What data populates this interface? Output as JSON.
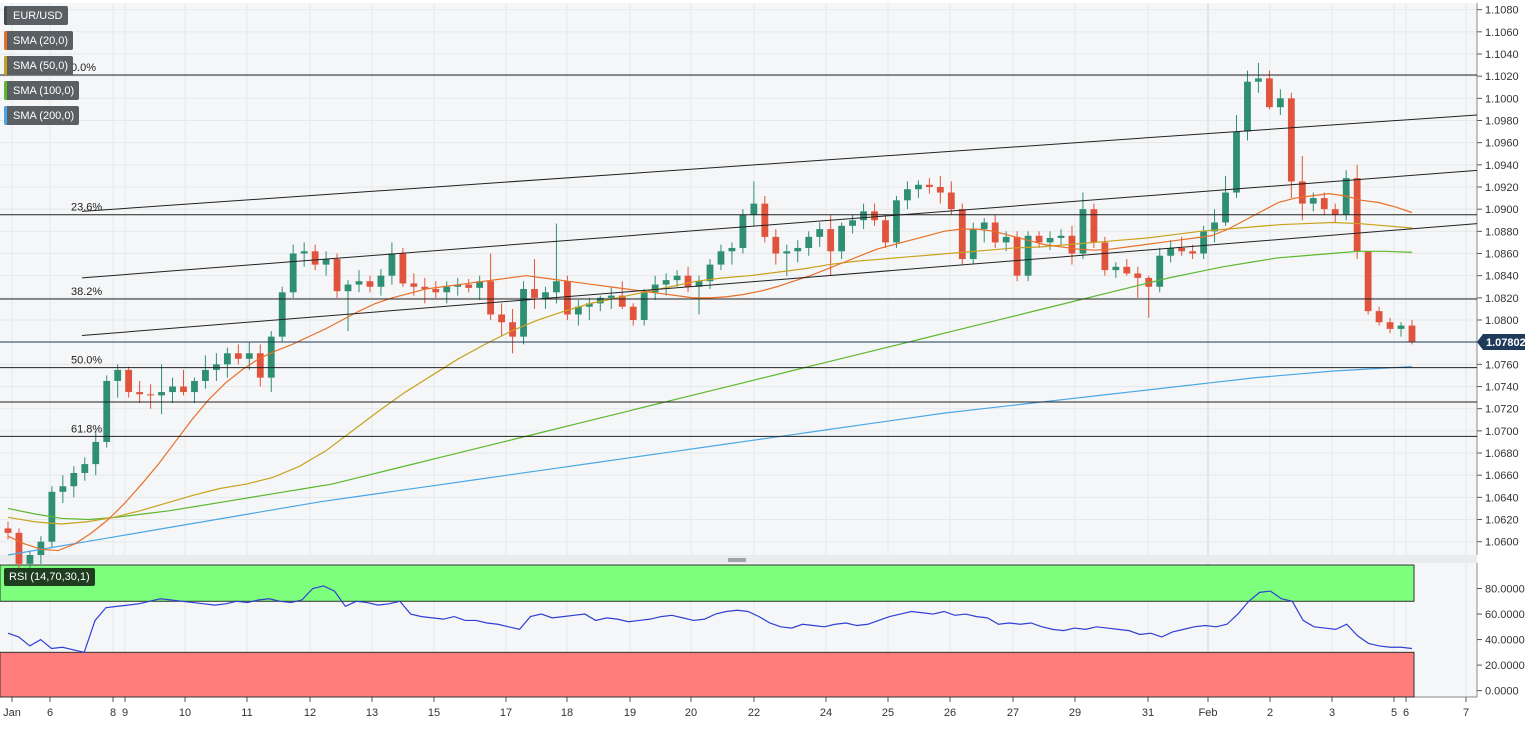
{
  "legend": [
    {
      "label": "EUR/USD",
      "color": "#5a5f63"
    },
    {
      "label": "SMA (20,0)",
      "color": "#e8702a"
    },
    {
      "label": "SMA (50,0)",
      "color": "#c8a21e"
    },
    {
      "label": "SMA (100,0)",
      "color": "#5cb82e"
    },
    {
      "label": "SMA (200,0)",
      "color": "#4aa7e6"
    }
  ],
  "rsi_label": "RSI (14,70,30,1)",
  "price_tag": "1.07802",
  "colors": {
    "bull": "#2f8f72",
    "bear": "#e0533c",
    "sma20": "#e8702a",
    "sma50": "#c8a21e",
    "sma100": "#5cb82e",
    "sma200": "#4aa7e6",
    "rsi": "#2f3fd6",
    "overbought": "#7dff7d",
    "oversold": "#ff7d7d"
  },
  "chart_data": {
    "type": "candlestick",
    "x_ticks": [
      "Jan",
      "6",
      "8",
      "9",
      "10",
      "11",
      "12",
      "13",
      "15",
      "17",
      "18",
      "19",
      "20",
      "22",
      "24",
      "25",
      "26",
      "27",
      "29",
      "31",
      "Feb",
      "2",
      "3",
      "5",
      "6",
      "7"
    ],
    "y_ticks": [
      "1.1080",
      "1.1060",
      "1.1040",
      "1.1020",
      "1.1000",
      "1.0980",
      "1.0960",
      "1.0940",
      "1.0920",
      "1.0900",
      "1.0880",
      "1.0860",
      "1.0840",
      "1.0820",
      "1.0800",
      "1.0780",
      "1.0760",
      "1.0740",
      "1.0720",
      "1.0700",
      "1.0680",
      "1.0660",
      "1.0640",
      "1.0620",
      "1.0600"
    ],
    "ylim": [
      1.0588,
      1.1086
    ],
    "fib_levels": [
      {
        "label": "0.0%",
        "value": 1.1021
      },
      {
        "label": "23.6%",
        "value": 1.0895
      },
      {
        "label": "38.2%",
        "value": 1.0819
      },
      {
        "label": "50.0%",
        "value": 1.0757
      },
      {
        "label": "",
        "value": 1.0726
      },
      {
        "label": "61.8%",
        "value": 1.0695
      }
    ],
    "current_price": 1.07802,
    "channel_lines": [
      {
        "from": [
          0,
          1.0898
        ],
        "to": [
          1,
          1.0985
        ]
      },
      {
        "from": [
          0,
          1.0838
        ],
        "to": [
          1,
          1.0935
        ]
      },
      {
        "from": [
          0,
          1.0786
        ],
        "to": [
          1,
          1.0887
        ]
      }
    ],
    "candles": [
      [
        1.0612,
        1.0618,
        1.0602,
        1.0608
      ],
      [
        1.0608,
        1.0612,
        1.0575,
        1.058
      ],
      [
        1.058,
        1.0592,
        1.057,
        1.0588
      ],
      [
        1.0588,
        1.0605,
        1.058,
        1.06
      ],
      [
        1.06,
        1.065,
        1.0595,
        1.0645
      ],
      [
        1.0645,
        1.066,
        1.0635,
        1.065
      ],
      [
        1.065,
        1.0668,
        1.064,
        1.0662
      ],
      [
        1.0662,
        1.0676,
        1.0655,
        1.067
      ],
      [
        1.067,
        1.07,
        1.066,
        1.069
      ],
      [
        1.069,
        1.075,
        1.0685,
        1.0745
      ],
      [
        1.0745,
        1.076,
        1.073,
        1.0755
      ],
      [
        1.0755,
        1.0758,
        1.073,
        1.0735
      ],
      [
        1.0735,
        1.0745,
        1.0725,
        1.0733
      ],
      [
        1.0733,
        1.0742,
        1.072,
        1.0732
      ],
      [
        1.0732,
        1.076,
        1.0715,
        1.0735
      ],
      [
        1.0735,
        1.0748,
        1.0725,
        1.074
      ],
      [
        1.074,
        1.0755,
        1.0732,
        1.0735
      ],
      [
        1.0735,
        1.0748,
        1.0725,
        1.0745
      ],
      [
        1.0745,
        1.0768,
        1.0738,
        1.0755
      ],
      [
        1.0755,
        1.077,
        1.0745,
        1.076
      ],
      [
        1.076,
        1.0775,
        1.0748,
        1.077
      ],
      [
        1.077,
        1.0778,
        1.076,
        1.0765
      ],
      [
        1.0765,
        1.078,
        1.0755,
        1.077
      ],
      [
        1.077,
        1.0778,
        1.074,
        1.0748
      ],
      [
        1.0748,
        1.079,
        1.0735,
        1.0785
      ],
      [
        1.0785,
        1.083,
        1.078,
        1.0825
      ],
      [
        1.0825,
        1.0868,
        1.082,
        1.086
      ],
      [
        1.086,
        1.087,
        1.0848,
        1.0862
      ],
      [
        1.0862,
        1.0868,
        1.0845,
        1.085
      ],
      [
        1.085,
        1.0862,
        1.084,
        1.0855
      ],
      [
        1.0855,
        1.086,
        1.082,
        1.0826
      ],
      [
        1.0826,
        1.0836,
        1.079,
        1.0832
      ],
      [
        1.0832,
        1.0845,
        1.0825,
        1.0835
      ],
      [
        1.0835,
        1.084,
        1.0825,
        1.083
      ],
      [
        1.083,
        1.0846,
        1.0822,
        1.084
      ],
      [
        1.084,
        1.087,
        1.0832,
        1.086
      ],
      [
        1.086,
        1.0865,
        1.083,
        1.0833
      ],
      [
        1.0833,
        1.0842,
        1.0822,
        1.083
      ],
      [
        1.083,
        1.0838,
        1.0815,
        1.0828
      ],
      [
        1.0828,
        1.0835,
        1.082,
        1.0825
      ],
      [
        1.0825,
        1.0835,
        1.0815,
        1.083
      ],
      [
        1.083,
        1.0838,
        1.0822,
        1.0832
      ],
      [
        1.0832,
        1.0837,
        1.0825,
        1.0829
      ],
      [
        1.0829,
        1.084,
        1.0818,
        1.0835
      ],
      [
        1.0835,
        1.086,
        1.08,
        1.0805
      ],
      [
        1.0805,
        1.0815,
        1.0785,
        1.0798
      ],
      [
        1.0798,
        1.081,
        1.077,
        1.0785
      ],
      [
        1.0785,
        1.0835,
        1.0778,
        1.0828
      ],
      [
        1.0828,
        1.0855,
        1.081,
        1.082
      ],
      [
        1.082,
        1.083,
        1.081,
        1.0825
      ],
      [
        1.0825,
        1.0887,
        1.0815,
        1.0835
      ],
      [
        1.0835,
        1.084,
        1.08,
        1.0805
      ],
      [
        1.0805,
        1.0818,
        1.0795,
        1.0812
      ],
      [
        1.0812,
        1.082,
        1.08,
        1.0815
      ],
      [
        1.0815,
        1.0822,
        1.0808,
        1.082
      ],
      [
        1.082,
        1.083,
        1.081,
        1.0822
      ],
      [
        1.0822,
        1.0835,
        1.081,
        1.0812
      ],
      [
        1.0812,
        1.0815,
        1.0795,
        1.08
      ],
      [
        1.08,
        1.0828,
        1.0795,
        1.0825
      ],
      [
        1.0825,
        1.084,
        1.0818,
        1.0832
      ],
      [
        1.0832,
        1.0842,
        1.0822,
        1.0836
      ],
      [
        1.0836,
        1.0845,
        1.083,
        1.084
      ],
      [
        1.084,
        1.0848,
        1.0825,
        1.083
      ],
      [
        1.083,
        1.084,
        1.0805,
        1.0835
      ],
      [
        1.0835,
        1.0855,
        1.0828,
        1.085
      ],
      [
        1.085,
        1.0868,
        1.0845,
        1.0862
      ],
      [
        1.0862,
        1.087,
        1.085,
        1.0865
      ],
      [
        1.0865,
        1.09,
        1.086,
        1.0895
      ],
      [
        1.0895,
        1.0925,
        1.0885,
        1.0905
      ],
      [
        1.0905,
        1.0912,
        1.087,
        1.0875
      ],
      [
        1.0875,
        1.0882,
        1.085,
        1.086
      ],
      [
        1.086,
        1.0868,
        1.084,
        1.0862
      ],
      [
        1.0862,
        1.0872,
        1.0852,
        1.0865
      ],
      [
        1.0865,
        1.088,
        1.0858,
        1.0875
      ],
      [
        1.0875,
        1.0888,
        1.0866,
        1.0882
      ],
      [
        1.0882,
        1.0895,
        1.084,
        1.0862
      ],
      [
        1.0862,
        1.0888,
        1.0855,
        1.0885
      ],
      [
        1.0885,
        1.0895,
        1.0878,
        1.089
      ],
      [
        1.089,
        1.0905,
        1.0882,
        1.0898
      ],
      [
        1.0898,
        1.0905,
        1.0885,
        1.089
      ],
      [
        1.089,
        1.0895,
        1.0865,
        1.087
      ],
      [
        1.087,
        1.0912,
        1.0865,
        1.0908
      ],
      [
        1.0908,
        1.0925,
        1.09,
        1.0918
      ],
      [
        1.0918,
        1.0926,
        1.091,
        1.0922
      ],
      [
        1.0922,
        1.0928,
        1.0914,
        1.092
      ],
      [
        1.092,
        1.093,
        1.0905,
        1.0915
      ],
      [
        1.0915,
        1.0925,
        1.0895,
        1.09
      ],
      [
        1.09,
        1.0905,
        1.085,
        1.0855
      ],
      [
        1.0855,
        1.0888,
        1.085,
        1.0882
      ],
      [
        1.0882,
        1.0892,
        1.087,
        1.0888
      ],
      [
        1.0888,
        1.0895,
        1.0865,
        1.087
      ],
      [
        1.087,
        1.088,
        1.0862,
        1.0875
      ],
      [
        1.0875,
        1.088,
        1.0835,
        1.084
      ],
      [
        1.084,
        1.088,
        1.0835,
        1.0876
      ],
      [
        1.0876,
        1.088,
        1.0865,
        1.087
      ],
      [
        1.087,
        1.088,
        1.0863,
        1.0874
      ],
      [
        1.0874,
        1.0882,
        1.0868,
        1.0876
      ],
      [
        1.0876,
        1.0885,
        1.085,
        1.086
      ],
      [
        1.086,
        1.0915,
        1.0855,
        1.09
      ],
      [
        1.09,
        1.0905,
        1.0865,
        1.087
      ],
      [
        1.087,
        1.0875,
        1.084,
        1.0845
      ],
      [
        1.0845,
        1.0852,
        1.0838,
        1.0848
      ],
      [
        1.0848,
        1.0855,
        1.084,
        1.0842
      ],
      [
        1.0842,
        1.0848,
        1.082,
        1.0838
      ],
      [
        1.0838,
        1.084,
        1.0802,
        1.083
      ],
      [
        1.083,
        1.0865,
        1.0825,
        1.0858
      ],
      [
        1.0858,
        1.0872,
        1.0852,
        1.0865
      ],
      [
        1.0865,
        1.0875,
        1.0858,
        1.0862
      ],
      [
        1.0862,
        1.0868,
        1.0855,
        1.086
      ],
      [
        1.086,
        1.0885,
        1.0855,
        1.088
      ],
      [
        1.088,
        1.09,
        1.087,
        1.0888
      ],
      [
        1.0888,
        1.093,
        1.0885,
        1.0915
      ],
      [
        1.0915,
        1.0985,
        1.091,
        1.097
      ],
      [
        1.097,
        1.1025,
        1.0962,
        1.1015
      ],
      [
        1.1015,
        1.1032,
        1.1005,
        1.1018
      ],
      [
        1.1018,
        1.1025,
        1.099,
        1.0992
      ],
      [
        1.0992,
        1.1008,
        1.0985,
        1.1
      ],
      [
        1.1,
        1.1005,
        1.091,
        1.0925
      ],
      [
        1.0925,
        1.0948,
        1.089,
        1.0905
      ],
      [
        1.0905,
        1.0915,
        1.0898,
        1.091
      ],
      [
        1.091,
        1.0915,
        1.0895,
        1.09
      ],
      [
        1.09,
        1.0905,
        1.0888,
        1.0895
      ],
      [
        1.0895,
        1.0935,
        1.089,
        1.0928
      ],
      [
        1.0928,
        1.094,
        1.0855,
        1.0862
      ],
      [
        1.0862,
        1.0862,
        1.0805,
        1.0808
      ],
      [
        1.0808,
        1.0812,
        1.0795,
        1.0798
      ],
      [
        1.0798,
        1.0802,
        1.0788,
        1.0792
      ],
      [
        1.0792,
        1.0798,
        1.0785,
        1.0795
      ],
      [
        1.0795,
        1.08,
        1.0778,
        1.078
      ]
    ],
    "sma20": [
      1.0605,
      1.0598,
      1.0593,
      1.0592,
      1.0598,
      1.0608,
      1.062,
      1.0635,
      1.0652,
      1.067,
      1.069,
      1.071,
      1.0728,
      1.0743,
      1.0755,
      1.0765,
      1.0772,
      1.0778,
      1.0785,
      1.0792,
      1.08,
      1.0808,
      1.0815,
      1.082,
      1.0824,
      1.0828,
      1.083,
      1.0832,
      1.0834,
      1.0836,
      1.0838,
      1.084,
      1.0838,
      1.0836,
      1.0834,
      1.0832,
      1.083,
      1.0828,
      1.0826,
      1.0824,
      1.0822,
      1.082,
      1.082,
      1.0821,
      1.0823,
      1.0826,
      1.083,
      1.0835,
      1.084,
      1.0846,
      1.0852,
      1.0858,
      1.0864,
      1.0868,
      1.0872,
      1.0876,
      1.088,
      1.0882,
      1.0882,
      1.088,
      1.0876,
      1.0872,
      1.0868,
      1.0866,
      1.0864,
      1.0863,
      1.0864,
      1.0866,
      1.0868,
      1.087,
      1.0872,
      1.0874,
      1.0876,
      1.0882,
      1.089,
      1.0898,
      1.0906,
      1.091,
      1.0912,
      1.0914,
      1.0912,
      1.0908,
      1.0906,
      1.0902,
      1.0897
    ],
    "sma50": [
      1.0622,
      1.0618,
      1.0616,
      1.0618,
      1.0622,
      1.0628,
      1.0635,
      1.0642,
      1.0648,
      1.0652,
      1.0658,
      1.0668,
      1.0682,
      1.07,
      1.0718,
      1.0735,
      1.075,
      1.0765,
      1.0778,
      1.079,
      1.08,
      1.0808,
      1.0815,
      1.082,
      1.0825,
      1.083,
      1.0835,
      1.0838,
      1.084,
      1.0843,
      1.0846,
      1.085,
      1.0853,
      1.0855,
      1.0857,
      1.0859,
      1.0861,
      1.0863,
      1.0865,
      1.0866,
      1.0868,
      1.087,
      1.0872,
      1.0874,
      1.0877,
      1.088,
      1.0882,
      1.0884,
      1.0886,
      1.0887,
      1.0888,
      1.0887,
      1.0885,
      1.0883
    ],
    "sma100": [
      1.063,
      1.0625,
      1.0621,
      1.062,
      1.0622,
      1.0625,
      1.0628,
      1.0632,
      1.0636,
      1.064,
      1.0644,
      1.0648,
      1.0652,
      1.0658,
      1.0664,
      1.067,
      1.0676,
      1.0682,
      1.0688,
      1.0694,
      1.07,
      1.0706,
      1.0712,
      1.0718,
      1.0724,
      1.073,
      1.0736,
      1.0742,
      1.0748,
      1.0754,
      1.076,
      1.0766,
      1.0772,
      1.0778,
      1.0784,
      1.079,
      1.0796,
      1.0802,
      1.0808,
      1.0814,
      1.082,
      1.0826,
      1.0832,
      1.0838,
      1.0843,
      1.0848,
      1.0852,
      1.0856,
      1.0858,
      1.086,
      1.0862,
      1.0862,
      1.0861
    ],
    "sma200": [
      1.0588,
      1.0594,
      1.06,
      1.0606,
      1.0612,
      1.0618,
      1.0624,
      1.063,
      1.0636,
      1.0641,
      1.0646,
      1.0651,
      1.0656,
      1.0661,
      1.0666,
      1.0671,
      1.0676,
      1.0681,
      1.0686,
      1.0691,
      1.0696,
      1.0701,
      1.0706,
      1.0711,
      1.0716,
      1.072,
      1.0724,
      1.0728,
      1.0732,
      1.0736,
      1.074,
      1.0744,
      1.0748,
      1.0751,
      1.0754,
      1.0756,
      1.0758
    ],
    "rsi": {
      "y_ticks": [
        "80.0000",
        "60.0000",
        "40.0000",
        "20.0000",
        "0.0000"
      ],
      "ylim": [
        -5,
        100
      ],
      "overbought": 70,
      "oversold": 30,
      "values": [
        45,
        42,
        35,
        40,
        33,
        34,
        32,
        30,
        55,
        65,
        66,
        67,
        68,
        70,
        72,
        71,
        70,
        69,
        68,
        67,
        68,
        70,
        69,
        71,
        72,
        70,
        69,
        71,
        80,
        82,
        78,
        66,
        70,
        69,
        67,
        68,
        70,
        60,
        58,
        57,
        56,
        58,
        55,
        55,
        53,
        52,
        50,
        48,
        58,
        60,
        57,
        58,
        59,
        60,
        55,
        57,
        56,
        54,
        55,
        56,
        58,
        59,
        57,
        55,
        56,
        60,
        62,
        63,
        62,
        58,
        53,
        50,
        49,
        52,
        51,
        50,
        52,
        53,
        51,
        52,
        55,
        58,
        60,
        62,
        61,
        60,
        62,
        59,
        60,
        58,
        57,
        52,
        53,
        52,
        53,
        50,
        48,
        47,
        49,
        48,
        50,
        49,
        48,
        47,
        44,
        45,
        42,
        46,
        48,
        50,
        51,
        50,
        52,
        60,
        70,
        77,
        78,
        72,
        70,
        55,
        50,
        49,
        48,
        52,
        43,
        37,
        35,
        34,
        34,
        33
      ]
    }
  }
}
